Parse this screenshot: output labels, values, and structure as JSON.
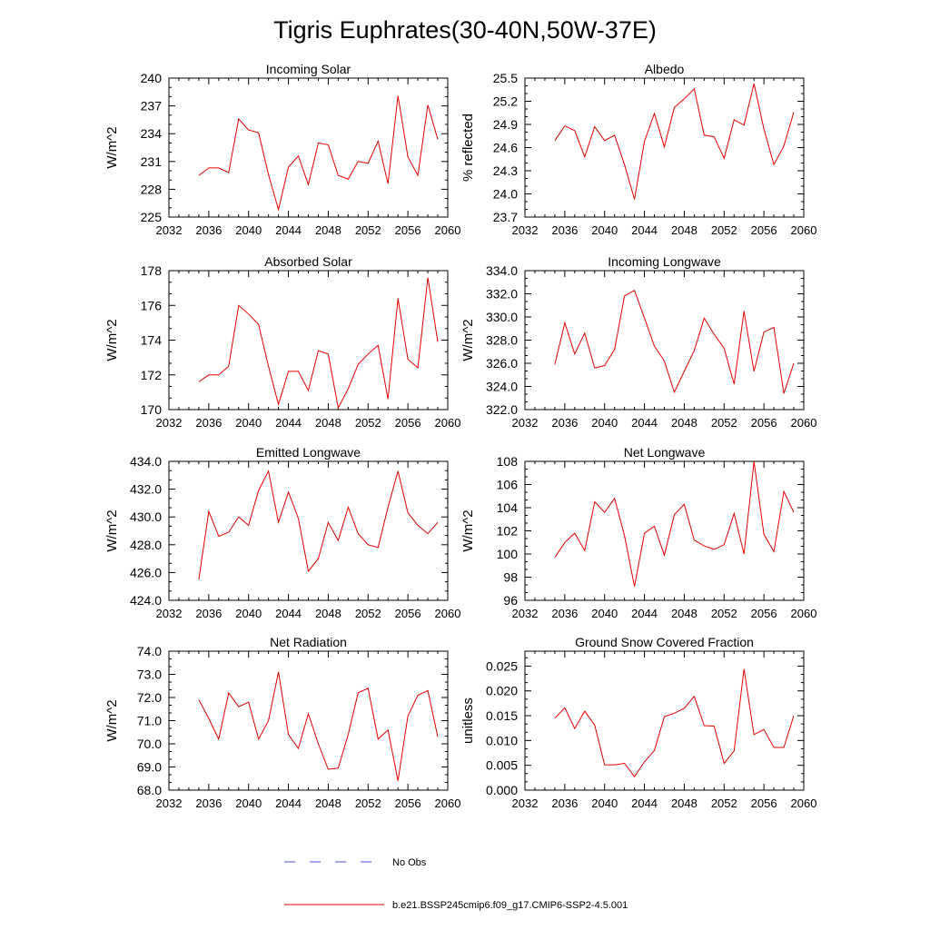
{
  "title": "Tigris Euphrates(30-40N,50W-37E)",
  "legend": {
    "items": [
      {
        "label": "No Obs",
        "color": "#4a4ad6",
        "style": "dashed"
      },
      {
        "label": "b.e21.BSSP245cmip6.f09_g17.CMIP6-SSP2-4.5.001",
        "color": "#e00000",
        "style": "solid"
      }
    ]
  },
  "line_color": "#e00000",
  "chart_data": [
    {
      "type": "line",
      "title": "Incoming Solar",
      "xlabel": "",
      "ylabel": "W/m^2",
      "xlim": [
        2032,
        2060
      ],
      "ylim": [
        225,
        240
      ],
      "xticks": [
        2032,
        2036,
        2040,
        2044,
        2048,
        2052,
        2056,
        2060
      ],
      "yticks": [
        225,
        228,
        231,
        234,
        237,
        240
      ],
      "ytick_labels": [
        "225",
        "228",
        "231",
        "234",
        "237",
        "240"
      ],
      "series": [
        {
          "x": [
            2035,
            2036,
            2037,
            2038,
            2039,
            2040,
            2041,
            2042,
            2043,
            2044,
            2045,
            2046,
            2047,
            2048,
            2049,
            2050,
            2051,
            2052,
            2053,
            2054,
            2055,
            2056,
            2057,
            2058,
            2059
          ],
          "values": [
            229.5,
            230.3,
            230.3,
            229.8,
            235.6,
            234.4,
            234.1,
            229.6,
            225.8,
            230.4,
            231.6,
            228.5,
            233.0,
            232.8,
            229.5,
            229.1,
            231.0,
            230.8,
            233.2,
            228.6,
            238.1,
            231.5,
            229.5,
            237.1,
            233.4
          ]
        }
      ]
    },
    {
      "type": "line",
      "title": "Albedo",
      "xlabel": "",
      "ylabel": "% reflected",
      "xlim": [
        2032,
        2060
      ],
      "ylim": [
        23.7,
        25.5
      ],
      "xticks": [
        2032,
        2036,
        2040,
        2044,
        2048,
        2052,
        2056,
        2060
      ],
      "yticks": [
        23.7,
        24.0,
        24.3,
        24.6,
        24.9,
        25.2,
        25.5
      ],
      "ytick_labels": [
        "23.7",
        "24.0",
        "24.3",
        "24.6",
        "24.9",
        "25.2",
        "25.5"
      ],
      "series": [
        {
          "x": [
            2035,
            2036,
            2037,
            2038,
            2039,
            2040,
            2041,
            2042,
            2043,
            2044,
            2045,
            2046,
            2047,
            2048,
            2049,
            2050,
            2051,
            2052,
            2053,
            2054,
            2055,
            2056,
            2057,
            2058,
            2059
          ],
          "values": [
            24.69,
            24.88,
            24.82,
            24.48,
            24.87,
            24.69,
            24.76,
            24.38,
            23.93,
            24.68,
            25.04,
            24.61,
            25.12,
            25.23,
            25.36,
            24.76,
            24.74,
            24.46,
            24.96,
            24.89,
            25.43,
            24.84,
            24.38,
            24.62,
            25.06
          ]
        }
      ]
    },
    {
      "type": "line",
      "title": "Absorbed Solar",
      "xlabel": "",
      "ylabel": "W/m^2",
      "xlim": [
        2032,
        2060
      ],
      "ylim": [
        170,
        178
      ],
      "xticks": [
        2032,
        2036,
        2040,
        2044,
        2048,
        2052,
        2056,
        2060
      ],
      "yticks": [
        170,
        172,
        174,
        176,
        178
      ],
      "ytick_labels": [
        "170",
        "172",
        "174",
        "176",
        "178"
      ],
      "series": [
        {
          "x": [
            2035,
            2036,
            2037,
            2038,
            2039,
            2040,
            2041,
            2042,
            2043,
            2044,
            2045,
            2046,
            2047,
            2048,
            2049,
            2050,
            2051,
            2052,
            2053,
            2054,
            2055,
            2056,
            2057,
            2058,
            2059
          ],
          "values": [
            171.6,
            172.0,
            172.0,
            172.5,
            176.0,
            175.5,
            174.9,
            172.5,
            170.3,
            172.2,
            172.2,
            171.1,
            173.4,
            173.2,
            170.1,
            171.2,
            172.6,
            173.2,
            173.7,
            170.6,
            176.4,
            172.9,
            172.4,
            177.6,
            173.9
          ]
        }
      ]
    },
    {
      "type": "line",
      "title": "Incoming Longwave",
      "xlabel": "",
      "ylabel": "W/m^2",
      "xlim": [
        2032,
        2060
      ],
      "ylim": [
        322,
        334
      ],
      "xticks": [
        2032,
        2036,
        2040,
        2044,
        2048,
        2052,
        2056,
        2060
      ],
      "yticks": [
        322,
        324,
        326,
        328,
        330,
        332,
        334
      ],
      "ytick_labels": [
        "322.0",
        "324.0",
        "326.0",
        "328.0",
        "330.0",
        "332.0",
        "334.0"
      ],
      "series": [
        {
          "x": [
            2035,
            2036,
            2037,
            2038,
            2039,
            2040,
            2041,
            2042,
            2043,
            2044,
            2045,
            2046,
            2047,
            2048,
            2049,
            2050,
            2051,
            2052,
            2053,
            2054,
            2055,
            2056,
            2057,
            2058,
            2059
          ],
          "values": [
            325.9,
            329.5,
            326.8,
            328.6,
            325.6,
            325.8,
            327.2,
            331.8,
            332.3,
            329.9,
            327.5,
            326.2,
            323.5,
            325.3,
            327.1,
            329.9,
            328.5,
            327.3,
            324.2,
            330.5,
            325.3,
            328.7,
            329.1,
            323.4,
            326.0
          ]
        }
      ]
    },
    {
      "type": "line",
      "title": "Emitted Longwave",
      "xlabel": "",
      "ylabel": "W/m^2",
      "xlim": [
        2032,
        2060
      ],
      "ylim": [
        424,
        434
      ],
      "xticks": [
        2032,
        2036,
        2040,
        2044,
        2048,
        2052,
        2056,
        2060
      ],
      "yticks": [
        424,
        426,
        428,
        430,
        432,
        434
      ],
      "ytick_labels": [
        "424.0",
        "426.0",
        "428.0",
        "430.0",
        "432.0",
        "434.0"
      ],
      "series": [
        {
          "x": [
            2035,
            2036,
            2037,
            2038,
            2039,
            2040,
            2041,
            2042,
            2043,
            2044,
            2045,
            2046,
            2047,
            2048,
            2049,
            2050,
            2051,
            2052,
            2053,
            2054,
            2055,
            2056,
            2057,
            2058,
            2059
          ],
          "values": [
            425.5,
            430.4,
            428.6,
            428.9,
            430.0,
            429.4,
            431.9,
            433.3,
            429.6,
            431.8,
            429.9,
            426.1,
            427.0,
            429.6,
            428.3,
            430.7,
            428.8,
            428.0,
            427.8,
            430.7,
            433.3,
            430.3,
            429.4,
            428.8,
            429.6
          ]
        }
      ]
    },
    {
      "type": "line",
      "title": "Net Longwave",
      "xlabel": "",
      "ylabel": "W/m^2",
      "xlim": [
        2032,
        2060
      ],
      "ylim": [
        96,
        108
      ],
      "xticks": [
        2032,
        2036,
        2040,
        2044,
        2048,
        2052,
        2056,
        2060
      ],
      "yticks": [
        96,
        98,
        100,
        102,
        104,
        106,
        108
      ],
      "ytick_labels": [
        "96",
        "98",
        "100",
        "102",
        "104",
        "106",
        "108"
      ],
      "series": [
        {
          "x": [
            2035,
            2036,
            2037,
            2038,
            2039,
            2040,
            2041,
            2042,
            2043,
            2044,
            2045,
            2046,
            2047,
            2048,
            2049,
            2050,
            2051,
            2052,
            2053,
            2054,
            2055,
            2056,
            2057,
            2058,
            2059
          ],
          "values": [
            99.7,
            101.0,
            101.8,
            100.3,
            104.5,
            103.6,
            104.8,
            101.6,
            97.2,
            101.8,
            102.4,
            99.9,
            103.4,
            104.3,
            101.2,
            100.7,
            100.4,
            100.8,
            103.5,
            100.0,
            108.0,
            101.7,
            100.2,
            105.4,
            103.6
          ]
        }
      ]
    },
    {
      "type": "line",
      "title": "Net Radiation",
      "xlabel": "",
      "ylabel": "W/m^2",
      "xlim": [
        2032,
        2060
      ],
      "ylim": [
        68,
        74
      ],
      "xticks": [
        2032,
        2036,
        2040,
        2044,
        2048,
        2052,
        2056,
        2060
      ],
      "yticks": [
        68,
        69,
        70,
        71,
        72,
        73,
        74
      ],
      "ytick_labels": [
        "68.0",
        "69.0",
        "70.0",
        "71.0",
        "72.0",
        "73.0",
        "74.0"
      ],
      "series": [
        {
          "x": [
            2035,
            2036,
            2037,
            2038,
            2039,
            2040,
            2041,
            2042,
            2043,
            2044,
            2045,
            2046,
            2047,
            2048,
            2049,
            2050,
            2051,
            2052,
            2053,
            2054,
            2055,
            2056,
            2057,
            2058,
            2059
          ],
          "values": [
            71.9,
            71.1,
            70.2,
            72.2,
            71.6,
            71.8,
            70.2,
            71.0,
            73.1,
            70.4,
            69.8,
            71.3,
            70.0,
            68.9,
            68.95,
            70.4,
            72.2,
            72.4,
            70.2,
            70.6,
            68.4,
            71.2,
            72.1,
            72.3,
            70.3
          ]
        }
      ]
    },
    {
      "type": "line",
      "title": "Ground Snow Covered Fraction",
      "xlabel": "",
      "ylabel": "unitless",
      "xlim": [
        2032,
        2060
      ],
      "ylim": [
        0,
        0.028
      ],
      "xticks": [
        2032,
        2036,
        2040,
        2044,
        2048,
        2052,
        2056,
        2060
      ],
      "yticks": [
        0,
        0.005,
        0.01,
        0.015,
        0.02,
        0.025
      ],
      "ytick_labels": [
        "0.000",
        "0.005",
        "0.010",
        "0.015",
        "0.020",
        "0.025"
      ],
      "series": [
        {
          "x": [
            2035,
            2036,
            2037,
            2038,
            2039,
            2040,
            2041,
            2042,
            2043,
            2044,
            2045,
            2046,
            2047,
            2048,
            2049,
            2050,
            2051,
            2052,
            2053,
            2054,
            2055,
            2056,
            2057,
            2058,
            2059
          ],
          "values": [
            0.0145,
            0.0166,
            0.0124,
            0.0159,
            0.0131,
            0.0051,
            0.0051,
            0.0054,
            0.0027,
            0.0057,
            0.008,
            0.0148,
            0.0155,
            0.0165,
            0.0189,
            0.013,
            0.0129,
            0.0054,
            0.0079,
            0.0244,
            0.0112,
            0.0122,
            0.0086,
            0.0086,
            0.015
          ]
        }
      ]
    }
  ]
}
